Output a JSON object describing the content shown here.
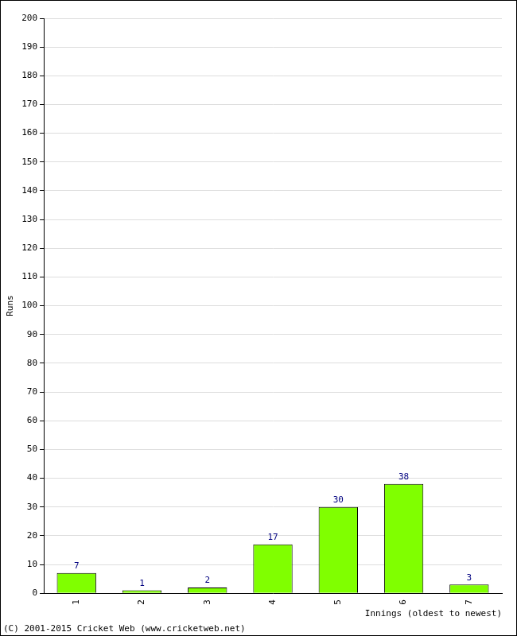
{
  "chart_data": {
    "type": "bar",
    "x_label": "Innings (oldest to newest)",
    "y_label": "Runs",
    "annotations": [
      "(C) 2001-2015 Cricket Web (www.cricketweb.net)"
    ],
    "categories": [
      "1",
      "2",
      "3",
      "4",
      "5",
      "6",
      "7"
    ],
    "values": [
      7,
      1,
      2,
      17,
      30,
      38,
      3
    ],
    "color": "#80ff00",
    "ylim": [
      0,
      200
    ],
    "yticks": [
      0,
      10,
      20,
      30,
      40,
      50,
      60,
      70,
      80,
      90,
      100,
      110,
      120,
      130,
      140,
      150,
      160,
      170,
      180,
      190,
      200
    ],
    "grid": true,
    "data_labels": true
  }
}
